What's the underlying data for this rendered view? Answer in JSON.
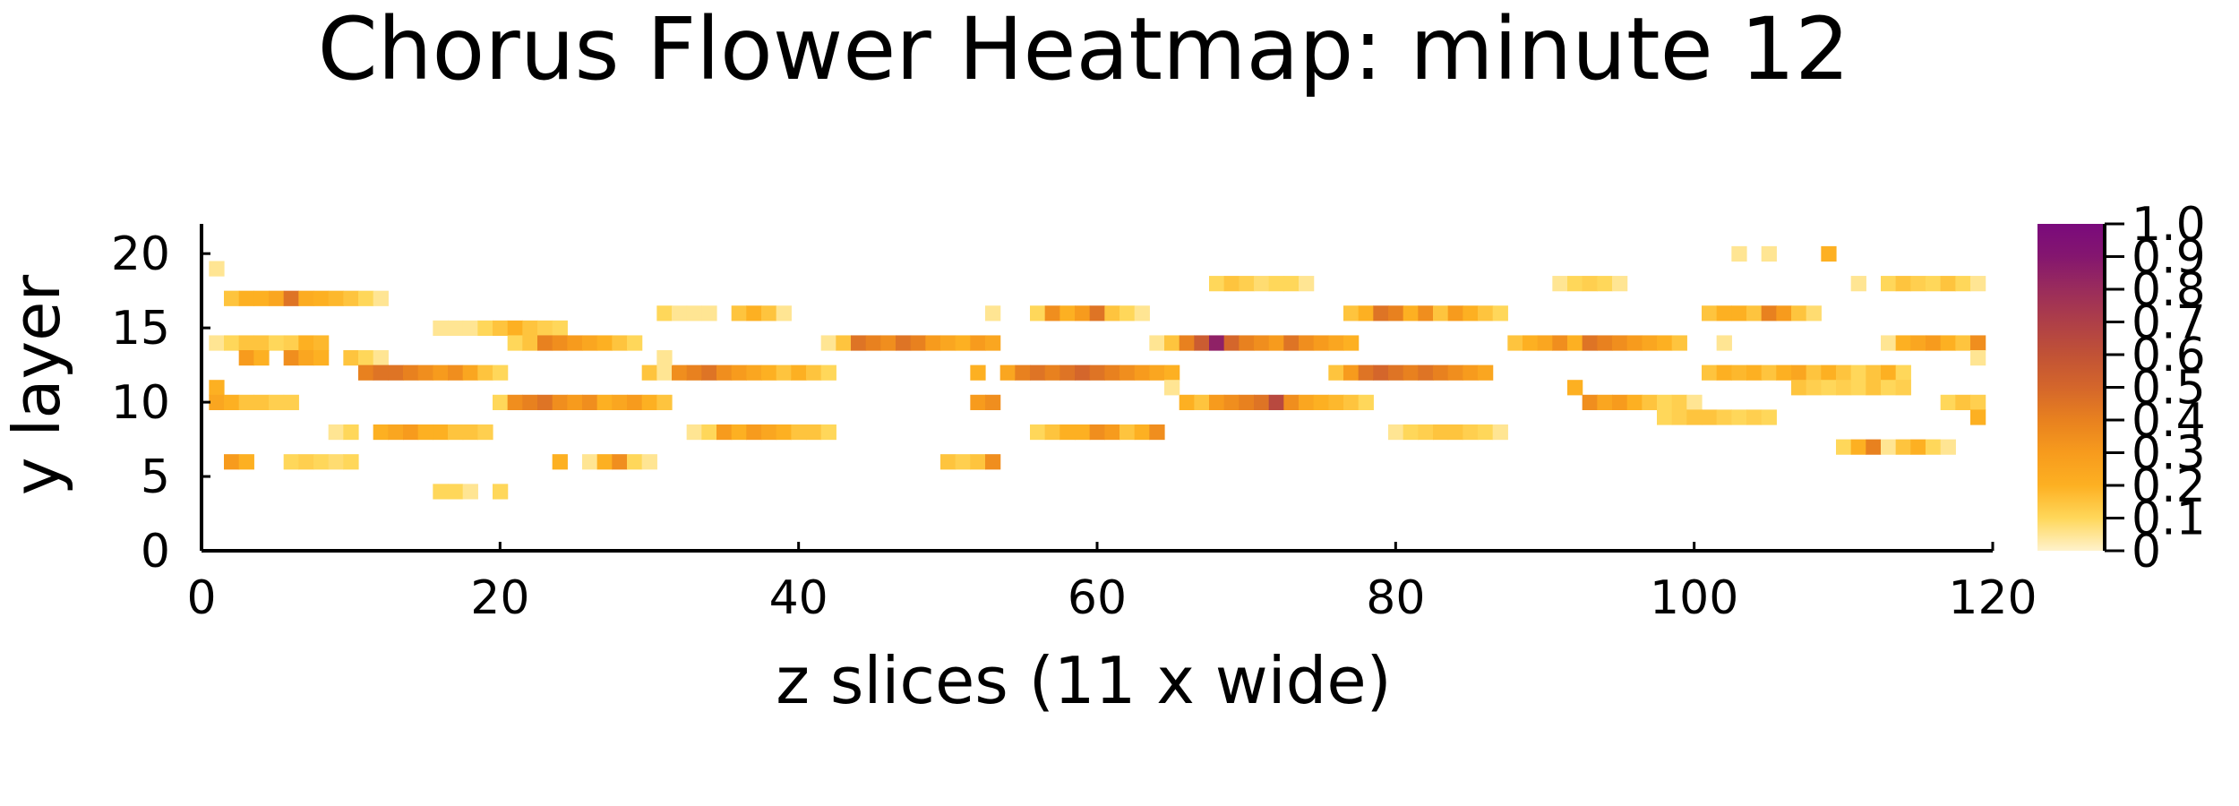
{
  "chart_data": {
    "type": "heatmap",
    "title": "Chorus Flower Heatmap: minute 12",
    "xlabel": "z slices (11 x wide)",
    "ylabel": "y layer",
    "xlim": [
      0,
      120
    ],
    "ylim": [
      0,
      22
    ],
    "x_ticks": [
      0,
      20,
      40,
      60,
      80,
      100,
      120
    ],
    "y_ticks": [
      0,
      5,
      10,
      15,
      20
    ],
    "colorbar": {
      "range": [
        0,
        1
      ],
      "ticks": [
        "0",
        "0.1",
        "0.2",
        "0.3",
        "0.4",
        "0.5",
        "0.6",
        "0.7",
        "0.8",
        "0.9",
        "1.0"
      ],
      "colormap": [
        "#fff2cc",
        "#ffd75a",
        "#fdb022",
        "#f79b1d",
        "#e8811f",
        "#d4662b",
        "#c15236",
        "#ae3f48",
        "#9a2c5c",
        "#84166f",
        "#7a0a7c"
      ]
    },
    "grid": false,
    "cells": [
      [
        1,
        19,
        0.05
      ],
      [
        1,
        11,
        0.2
      ],
      [
        1,
        10,
        0.25
      ],
      [
        2,
        10,
        0.2
      ],
      [
        3,
        10,
        0.15
      ],
      [
        4,
        10,
        0.15
      ],
      [
        5,
        10,
        0.12
      ],
      [
        6,
        10,
        0.12
      ],
      [
        1,
        14,
        0.05
      ],
      [
        2,
        14,
        0.1
      ],
      [
        3,
        14,
        0.15
      ],
      [
        4,
        14,
        0.15
      ],
      [
        5,
        14,
        0.1
      ],
      [
        6,
        14,
        0.12
      ],
      [
        7,
        14,
        0.2
      ],
      [
        8,
        14,
        0.18
      ],
      [
        3,
        13,
        0.3
      ],
      [
        4,
        13,
        0.2
      ],
      [
        6,
        13,
        0.35
      ],
      [
        7,
        13,
        0.25
      ],
      [
        8,
        13,
        0.2
      ],
      [
        10,
        13,
        0.15
      ],
      [
        11,
        13,
        0.1
      ],
      [
        12,
        13,
        0.05
      ],
      [
        2,
        17,
        0.15
      ],
      [
        3,
        17,
        0.2
      ],
      [
        4,
        17,
        0.2
      ],
      [
        5,
        17,
        0.25
      ],
      [
        6,
        17,
        0.45
      ],
      [
        7,
        17,
        0.22
      ],
      [
        8,
        17,
        0.2
      ],
      [
        9,
        17,
        0.18
      ],
      [
        10,
        17,
        0.15
      ],
      [
        11,
        17,
        0.1
      ],
      [
        12,
        17,
        0.05
      ],
      [
        2,
        6,
        0.3
      ],
      [
        3,
        6,
        0.2
      ],
      [
        6,
        6,
        0.1
      ],
      [
        7,
        6,
        0.12
      ],
      [
        8,
        6,
        0.1
      ],
      [
        9,
        6,
        0.08
      ],
      [
        10,
        6,
        0.1
      ],
      [
        9,
        8,
        0.05
      ],
      [
        10,
        8,
        0.1
      ],
      [
        11,
        12,
        0.4
      ],
      [
        12,
        12,
        0.45
      ],
      [
        13,
        12,
        0.45
      ],
      [
        14,
        12,
        0.4
      ],
      [
        15,
        12,
        0.35
      ],
      [
        16,
        12,
        0.3
      ],
      [
        17,
        12,
        0.35
      ],
      [
        18,
        12,
        0.25
      ],
      [
        19,
        12,
        0.15
      ],
      [
        20,
        12,
        0.1
      ],
      [
        12,
        8,
        0.2
      ],
      [
        13,
        8,
        0.25
      ],
      [
        14,
        8,
        0.3
      ],
      [
        15,
        8,
        0.2
      ],
      [
        16,
        8,
        0.2
      ],
      [
        17,
        8,
        0.15
      ],
      [
        18,
        8,
        0.15
      ],
      [
        19,
        8,
        0.12
      ],
      [
        16,
        4,
        0.1
      ],
      [
        17,
        4,
        0.1
      ],
      [
        18,
        4,
        0.05
      ],
      [
        20,
        4,
        0.1
      ],
      [
        16,
        15,
        0.05
      ],
      [
        17,
        15,
        0.05
      ],
      [
        18,
        15,
        0.05
      ],
      [
        19,
        15,
        0.1
      ],
      [
        20,
        15,
        0.15
      ],
      [
        21,
        15,
        0.2
      ],
      [
        22,
        15,
        0.15
      ],
      [
        23,
        15,
        0.12
      ],
      [
        24,
        15,
        0.1
      ],
      [
        20,
        10,
        0.1
      ],
      [
        21,
        10,
        0.35
      ],
      [
        22,
        10,
        0.4
      ],
      [
        23,
        10,
        0.45
      ],
      [
        24,
        10,
        0.35
      ],
      [
        25,
        10,
        0.3
      ],
      [
        26,
        10,
        0.35
      ],
      [
        27,
        10,
        0.2
      ],
      [
        28,
        10,
        0.25
      ],
      [
        29,
        10,
        0.3
      ],
      [
        30,
        10,
        0.2
      ],
      [
        31,
        10,
        0.15
      ],
      [
        21,
        14,
        0.1
      ],
      [
        22,
        14,
        0.15
      ],
      [
        23,
        14,
        0.4
      ],
      [
        24,
        14,
        0.35
      ],
      [
        25,
        14,
        0.3
      ],
      [
        26,
        14,
        0.25
      ],
      [
        27,
        14,
        0.2
      ],
      [
        28,
        14,
        0.15
      ],
      [
        29,
        14,
        0.1
      ],
      [
        24,
        6,
        0.2
      ],
      [
        26,
        6,
        0.05
      ],
      [
        27,
        6,
        0.2
      ],
      [
        28,
        6,
        0.35
      ],
      [
        29,
        6,
        0.1
      ],
      [
        30,
        6,
        0.05
      ],
      [
        30,
        12,
        0.15
      ],
      [
        31,
        12,
        0.05
      ],
      [
        32,
        12,
        0.35
      ],
      [
        33,
        12,
        0.4
      ],
      [
        34,
        12,
        0.45
      ],
      [
        35,
        12,
        0.35
      ],
      [
        36,
        12,
        0.3
      ],
      [
        37,
        12,
        0.25
      ],
      [
        38,
        12,
        0.2
      ],
      [
        39,
        12,
        0.15
      ],
      [
        40,
        12,
        0.2
      ],
      [
        41,
        12,
        0.15
      ],
      [
        42,
        12,
        0.1
      ],
      [
        31,
        13,
        0.05
      ],
      [
        31,
        16,
        0.1
      ],
      [
        32,
        16,
        0.05
      ],
      [
        33,
        16,
        0.05
      ],
      [
        34,
        16,
        0.05
      ],
      [
        36,
        16,
        0.15
      ],
      [
        37,
        16,
        0.2
      ],
      [
        38,
        16,
        0.15
      ],
      [
        39,
        16,
        0.05
      ],
      [
        33,
        8,
        0.05
      ],
      [
        34,
        8,
        0.1
      ],
      [
        35,
        8,
        0.3
      ],
      [
        36,
        8,
        0.2
      ],
      [
        37,
        8,
        0.3
      ],
      [
        38,
        8,
        0.25
      ],
      [
        39,
        8,
        0.2
      ],
      [
        40,
        8,
        0.15
      ],
      [
        41,
        8,
        0.15
      ],
      [
        42,
        8,
        0.1
      ],
      [
        42,
        14,
        0.05
      ],
      [
        43,
        14,
        0.15
      ],
      [
        44,
        14,
        0.45
      ],
      [
        45,
        14,
        0.4
      ],
      [
        46,
        14,
        0.35
      ],
      [
        47,
        14,
        0.45
      ],
      [
        48,
        14,
        0.4
      ],
      [
        49,
        14,
        0.3
      ],
      [
        50,
        14,
        0.25
      ],
      [
        51,
        14,
        0.2
      ],
      [
        52,
        14,
        0.3
      ],
      [
        53,
        14,
        0.25
      ],
      [
        50,
        6,
        0.15
      ],
      [
        51,
        6,
        0.12
      ],
      [
        52,
        6,
        0.15
      ],
      [
        53,
        6,
        0.35
      ],
      [
        52,
        12,
        0.2
      ],
      [
        54,
        12,
        0.25
      ],
      [
        55,
        12,
        0.4
      ],
      [
        56,
        12,
        0.45
      ],
      [
        57,
        12,
        0.4
      ],
      [
        58,
        12,
        0.45
      ],
      [
        59,
        12,
        0.5
      ],
      [
        60,
        12,
        0.45
      ],
      [
        61,
        12,
        0.4
      ],
      [
        62,
        12,
        0.35
      ],
      [
        63,
        12,
        0.3
      ],
      [
        64,
        12,
        0.25
      ],
      [
        65,
        12,
        0.2
      ],
      [
        52,
        10,
        0.3
      ],
      [
        53,
        10,
        0.35
      ],
      [
        53,
        16,
        0.05
      ],
      [
        56,
        16,
        0.1
      ],
      [
        57,
        16,
        0.35
      ],
      [
        58,
        16,
        0.2
      ],
      [
        59,
        16,
        0.3
      ],
      [
        60,
        16,
        0.45
      ],
      [
        61,
        16,
        0.15
      ],
      [
        62,
        16,
        0.1
      ],
      [
        63,
        16,
        0.05
      ],
      [
        56,
        8,
        0.1
      ],
      [
        57,
        8,
        0.15
      ],
      [
        58,
        8,
        0.2
      ],
      [
        59,
        8,
        0.2
      ],
      [
        60,
        8,
        0.35
      ],
      [
        61,
        8,
        0.3
      ],
      [
        62,
        8,
        0.15
      ],
      [
        63,
        8,
        0.2
      ],
      [
        64,
        8,
        0.35
      ],
      [
        64,
        14,
        0.05
      ],
      [
        65,
        14,
        0.15
      ],
      [
        66,
        14,
        0.4
      ],
      [
        67,
        14,
        0.55
      ],
      [
        68,
        14,
        0.85
      ],
      [
        69,
        14,
        0.5
      ],
      [
        70,
        14,
        0.4
      ],
      [
        71,
        14,
        0.35
      ],
      [
        72,
        14,
        0.3
      ],
      [
        73,
        14,
        0.45
      ],
      [
        74,
        14,
        0.35
      ],
      [
        75,
        14,
        0.3
      ],
      [
        76,
        14,
        0.25
      ],
      [
        77,
        14,
        0.2
      ],
      [
        66,
        10,
        0.2
      ],
      [
        67,
        10,
        0.15
      ],
      [
        68,
        10,
        0.3
      ],
      [
        69,
        10,
        0.35
      ],
      [
        70,
        10,
        0.4
      ],
      [
        71,
        10,
        0.45
      ],
      [
        72,
        10,
        0.65
      ],
      [
        73,
        10,
        0.35
      ],
      [
        74,
        10,
        0.25
      ],
      [
        75,
        10,
        0.2
      ],
      [
        76,
        10,
        0.18
      ],
      [
        77,
        10,
        0.15
      ],
      [
        78,
        10,
        0.1
      ],
      [
        65,
        11,
        0.05
      ],
      [
        68,
        18,
        0.1
      ],
      [
        69,
        18,
        0.15
      ],
      [
        70,
        18,
        0.12
      ],
      [
        71,
        18,
        0.08
      ],
      [
        72,
        18,
        0.1
      ],
      [
        73,
        18,
        0.1
      ],
      [
        74,
        18,
        0.05
      ],
      [
        76,
        12,
        0.15
      ],
      [
        77,
        12,
        0.3
      ],
      [
        78,
        12,
        0.45
      ],
      [
        79,
        12,
        0.5
      ],
      [
        80,
        12,
        0.45
      ],
      [
        81,
        12,
        0.4
      ],
      [
        82,
        12,
        0.45
      ],
      [
        83,
        12,
        0.4
      ],
      [
        84,
        12,
        0.35
      ],
      [
        85,
        12,
        0.3
      ],
      [
        86,
        12,
        0.25
      ],
      [
        77,
        16,
        0.15
      ],
      [
        78,
        16,
        0.2
      ],
      [
        79,
        16,
        0.45
      ],
      [
        80,
        16,
        0.4
      ],
      [
        81,
        16,
        0.2
      ],
      [
        82,
        16,
        0.35
      ],
      [
        83,
        16,
        0.15
      ],
      [
        84,
        16,
        0.3
      ],
      [
        85,
        16,
        0.2
      ],
      [
        86,
        16,
        0.15
      ],
      [
        87,
        16,
        0.1
      ],
      [
        80,
        8,
        0.05
      ],
      [
        81,
        8,
        0.1
      ],
      [
        82,
        8,
        0.12
      ],
      [
        83,
        8,
        0.15
      ],
      [
        84,
        8,
        0.15
      ],
      [
        85,
        8,
        0.12
      ],
      [
        86,
        8,
        0.1
      ],
      [
        87,
        8,
        0.05
      ],
      [
        88,
        14,
        0.15
      ],
      [
        89,
        14,
        0.2
      ],
      [
        90,
        14,
        0.25
      ],
      [
        91,
        14,
        0.35
      ],
      [
        92,
        14,
        0.2
      ],
      [
        93,
        14,
        0.45
      ],
      [
        94,
        14,
        0.4
      ],
      [
        95,
        14,
        0.35
      ],
      [
        96,
        14,
        0.3
      ],
      [
        97,
        14,
        0.25
      ],
      [
        98,
        14,
        0.2
      ],
      [
        99,
        14,
        0.15
      ],
      [
        91,
        18,
        0.05
      ],
      [
        92,
        18,
        0.1
      ],
      [
        93,
        18,
        0.12
      ],
      [
        94,
        18,
        0.1
      ],
      [
        95,
        18,
        0.05
      ],
      [
        92,
        11,
        0.2
      ],
      [
        93,
        10,
        0.35
      ],
      [
        94,
        10,
        0.25
      ],
      [
        95,
        10,
        0.3
      ],
      [
        96,
        10,
        0.2
      ],
      [
        97,
        10,
        0.15
      ],
      [
        98,
        10,
        0.1
      ],
      [
        99,
        10,
        0.12
      ],
      [
        100,
        10,
        0.05
      ],
      [
        98,
        9,
        0.1
      ],
      [
        99,
        9,
        0.12
      ],
      [
        100,
        9,
        0.15
      ],
      [
        101,
        9,
        0.15
      ],
      [
        102,
        9,
        0.12
      ],
      [
        103,
        9,
        0.1
      ],
      [
        104,
        9,
        0.12
      ],
      [
        105,
        9,
        0.1
      ],
      [
        102,
        14,
        0.05
      ],
      [
        101,
        16,
        0.15
      ],
      [
        102,
        16,
        0.2
      ],
      [
        103,
        16,
        0.2
      ],
      [
        104,
        16,
        0.15
      ],
      [
        105,
        16,
        0.4
      ],
      [
        106,
        16,
        0.3
      ],
      [
        107,
        16,
        0.15
      ],
      [
        108,
        16,
        0.08
      ],
      [
        101,
        12,
        0.15
      ],
      [
        102,
        12,
        0.2
      ],
      [
        103,
        12,
        0.18
      ],
      [
        104,
        12,
        0.2
      ],
      [
        105,
        12,
        0.15
      ],
      [
        106,
        12,
        0.2
      ],
      [
        107,
        12,
        0.25
      ],
      [
        108,
        12,
        0.15
      ],
      [
        109,
        12,
        0.2
      ],
      [
        110,
        12,
        0.15
      ],
      [
        111,
        12,
        0.1
      ],
      [
        112,
        12,
        0.15
      ],
      [
        113,
        12,
        0.2
      ],
      [
        114,
        12,
        0.1
      ],
      [
        107,
        11,
        0.15
      ],
      [
        108,
        11,
        0.12
      ],
      [
        109,
        11,
        0.1
      ],
      [
        110,
        11,
        0.12
      ],
      [
        111,
        11,
        0.1
      ],
      [
        112,
        11,
        0.15
      ],
      [
        113,
        11,
        0.1
      ],
      [
        114,
        11,
        0.12
      ],
      [
        103,
        20,
        0.05
      ],
      [
        105,
        20,
        0.05
      ],
      [
        109,
        20,
        0.2
      ],
      [
        111,
        18,
        0.05
      ],
      [
        113,
        18,
        0.1
      ],
      [
        114,
        18,
        0.15
      ],
      [
        115,
        18,
        0.12
      ],
      [
        116,
        18,
        0.1
      ],
      [
        117,
        18,
        0.15
      ],
      [
        118,
        18,
        0.1
      ],
      [
        119,
        18,
        0.05
      ],
      [
        113,
        14,
        0.05
      ],
      [
        114,
        14,
        0.2
      ],
      [
        115,
        14,
        0.25
      ],
      [
        116,
        14,
        0.3
      ],
      [
        117,
        14,
        0.2
      ],
      [
        118,
        14,
        0.15
      ],
      [
        119,
        14,
        0.35
      ],
      [
        119,
        13,
        0.05
      ],
      [
        110,
        7,
        0.1
      ],
      [
        111,
        7,
        0.2
      ],
      [
        112,
        7,
        0.4
      ],
      [
        113,
        7,
        0.05
      ],
      [
        114,
        7,
        0.15
      ],
      [
        115,
        7,
        0.2
      ],
      [
        116,
        7,
        0.1
      ],
      [
        117,
        7,
        0.05
      ],
      [
        117,
        10,
        0.1
      ],
      [
        118,
        10,
        0.15
      ],
      [
        119,
        10,
        0.12
      ],
      [
        119,
        9,
        0.2
      ]
    ]
  }
}
